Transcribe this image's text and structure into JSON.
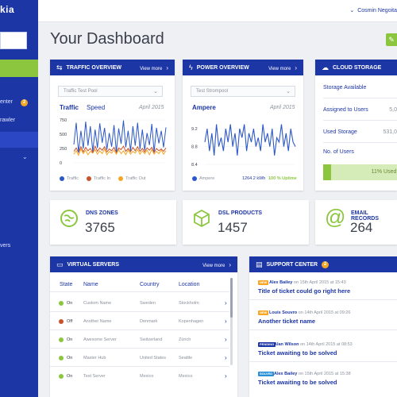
{
  "sidebar": {
    "logo": "kia",
    "items": [
      {
        "label": "enter"
      },
      {
        "label": "rawler"
      },
      {
        "label": ""
      },
      {
        "label": "vers"
      }
    ],
    "badge": "2"
  },
  "topbar": {
    "user_name": "Cosmin Negoita"
  },
  "page": {
    "title": "Your Dashboard"
  },
  "traffic": {
    "header": "TRAFFIC OVERVIEW",
    "view_more": "View more",
    "select": "Traffic Test Pool",
    "chart_title": "Traffic",
    "chart_subtitle": "Speed",
    "date": "April 2015",
    "legend": [
      {
        "label": "Traffic",
        "color": "#2b57c9"
      },
      {
        "label": "Traffic In",
        "color": "#c9522b"
      },
      {
        "label": "Traffic Out",
        "color": "#f5a623"
      }
    ]
  },
  "power": {
    "header": "POWER OVERVIEW",
    "view_more": "View more",
    "select": "Test Strompool",
    "chart_title": "Ampere",
    "date": "April 2015",
    "legend_label": "Ampere",
    "kwh": "1264.2 kWh",
    "uptime": "100 % Uptime"
  },
  "chart_data": [
    {
      "type": "line",
      "title": "Traffic",
      "subtitle": "Speed",
      "ylim": [
        0,
        750
      ],
      "yticks": [
        "750",
        "500",
        "250",
        "0"
      ],
      "series": [
        {
          "name": "Traffic",
          "color": "#2b57c9",
          "values": [
            320,
            700,
            180,
            560,
            250,
            720,
            300,
            640,
            200,
            580,
            260,
            690,
            350,
            610,
            230,
            520,
            280,
            660,
            190,
            600,
            330,
            740,
            270,
            560,
            210,
            640,
            300,
            700,
            240,
            580,
            220,
            520,
            310,
            680,
            190,
            610,
            340,
            560,
            270,
            620
          ]
        },
        {
          "name": "Traffic In",
          "color": "#c9522b",
          "values": [
            200,
            260,
            180,
            280,
            190,
            270,
            210,
            250,
            180,
            290,
            200,
            260,
            220,
            280,
            190,
            240,
            210,
            270,
            180,
            260,
            230,
            290,
            200,
            250,
            190,
            270,
            210,
            280,
            200,
            250,
            190,
            260,
            220,
            270,
            180,
            250,
            210,
            240,
            200,
            260
          ]
        },
        {
          "name": "Traffic Out",
          "color": "#f5a623",
          "values": [
            150,
            210,
            130,
            240,
            160,
            220,
            140,
            200,
            170,
            230,
            150,
            210,
            160,
            240,
            140,
            200,
            170,
            220,
            150,
            230,
            160,
            210,
            140,
            220,
            150,
            200,
            170,
            230,
            150,
            210,
            160,
            220,
            140,
            230,
            150,
            200,
            160,
            220,
            150,
            210
          ]
        }
      ]
    },
    {
      "type": "line",
      "title": "Ampere",
      "ylim": [
        8.4,
        9.4
      ],
      "yticks": [
        "9.2",
        "8.8",
        "8.4"
      ],
      "series": [
        {
          "name": "Ampere",
          "color": "#2b57c9",
          "values": [
            8.9,
            9.2,
            8.7,
            9.1,
            8.6,
            9.3,
            8.8,
            9.0,
            8.7,
            9.2,
            8.9,
            9.3,
            8.8,
            9.1,
            8.6,
            9.2,
            9.0,
            9.3,
            8.7,
            9.1,
            8.9,
            9.2,
            8.8,
            9.0,
            8.7,
            9.3,
            8.9,
            9.1,
            8.8,
            9.2,
            8.6,
            9.0,
            8.9,
            9.3,
            8.8,
            9.1,
            8.7,
            9.2,
            8.9,
            8.8
          ]
        }
      ]
    }
  ],
  "cloud": {
    "header": "CLOUD STORAGE",
    "rows": [
      {
        "label": "Storage Available",
        "value": ""
      },
      {
        "label": "Assigned to Users",
        "value": "5,0"
      },
      {
        "label": "Used Storage",
        "value": "531,0"
      },
      {
        "label": "No. of Users",
        "value": ""
      }
    ],
    "used_pct": 11,
    "used_label": "11% Used"
  },
  "stats": [
    {
      "label": "DNS ZONES",
      "value": "3765",
      "icon": "globe-icon"
    },
    {
      "label": "DSL PRODUCTS",
      "value": "1457",
      "icon": "box-icon"
    },
    {
      "label": "EMAIL RECORDS",
      "value": "264",
      "icon": "at-icon"
    }
  ],
  "servers": {
    "header": "VIRTUAL SERVERS",
    "view_more": "View more",
    "columns": [
      "State",
      "Name",
      "Country",
      "Location"
    ],
    "rows": [
      {
        "state": "On",
        "name": "Custom Name",
        "country": "Sweden",
        "location": "Stockholm",
        "color": "#8cc63f"
      },
      {
        "state": "Off",
        "name": "Another Name",
        "country": "Denmark",
        "location": "Kopenhagen",
        "color": "#c9522b"
      },
      {
        "state": "On",
        "name": "Awesome Server",
        "country": "Switzerland",
        "location": "Zürich",
        "color": "#8cc63f"
      },
      {
        "state": "On",
        "name": "Master Hub",
        "country": "United States",
        "location": "Seattle",
        "color": "#8cc63f"
      },
      {
        "state": "On",
        "name": "Test Server",
        "country": "Mexico",
        "location": "Mexico",
        "color": "#8cc63f"
      }
    ]
  },
  "support": {
    "header": "SUPPORT CENTER",
    "badge": "2",
    "items": [
      {
        "tag": "NEW",
        "tag_color": "#f5a623",
        "author": "Alex Bailey",
        "meta": " on 15th April 2015 at 15:43",
        "title": "Title of ticket could go right here"
      },
      {
        "tag": "NEW",
        "tag_color": "#f5a623",
        "author": "Louis Souvro",
        "meta": " on 14th April 2015 at 09:26",
        "title": "Another ticket name"
      },
      {
        "tag": "PENDING",
        "tag_color": "#1d36a6",
        "author": "Alan Wilson",
        "meta": " on 14th April 2015 at 08:53",
        "title": "Ticket awaiting to be solved"
      },
      {
        "tag": "SOLVED",
        "tag_color": "#2b8fd6",
        "author": "Alex Bailey",
        "meta": " on 15th April 2015 at 15:38",
        "title": "Ticket awaiting to be solved"
      }
    ]
  }
}
